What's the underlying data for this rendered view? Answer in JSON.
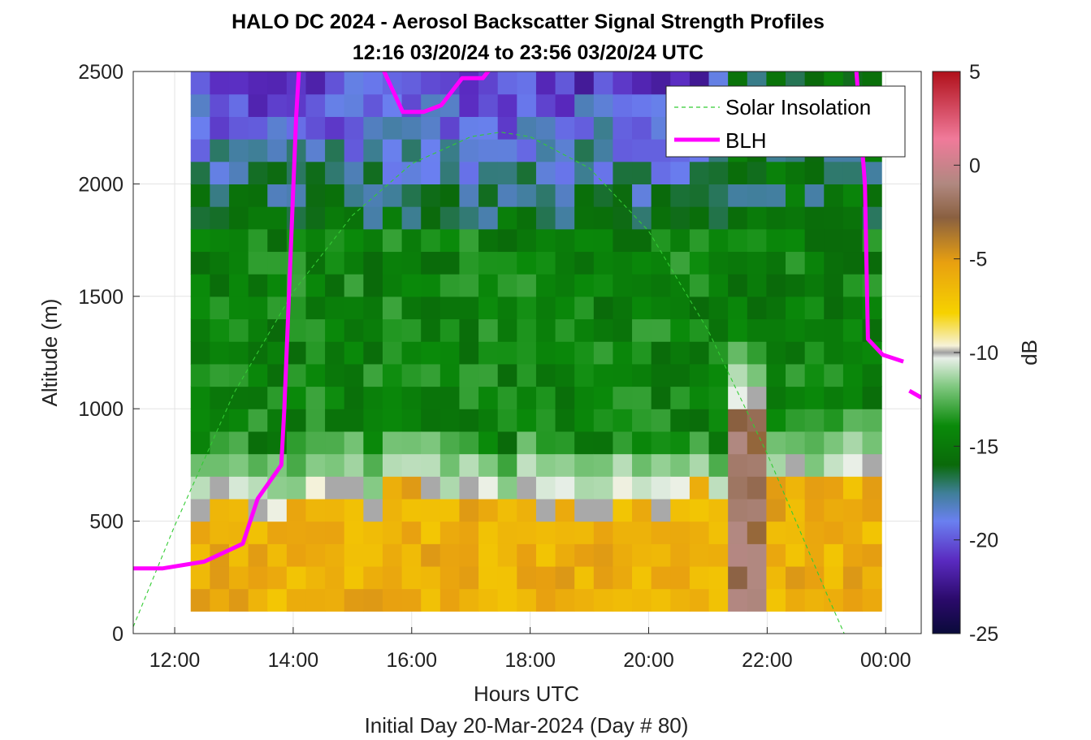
{
  "chart_data": {
    "type": "heatmap",
    "title": "HALO DC 2024 - Aerosol Backscatter Signal Strength Profiles",
    "subtitle": "12:16 03/20/24 to 23:56 03/20/24  UTC",
    "xlabel": "Hours UTC",
    "xlabel2": "Initial Day 20-Mar-2024 (Day # 80)",
    "ylabel": "Altitude (m)",
    "xlim": [
      11.3,
      24.6
    ],
    "ylim": [
      0,
      2500
    ],
    "x_ticks": [
      {
        "value": 12,
        "label": "12:00"
      },
      {
        "value": 14,
        "label": "14:00"
      },
      {
        "value": 16,
        "label": "16:00"
      },
      {
        "value": 18,
        "label": "18:00"
      },
      {
        "value": 20,
        "label": "20:00"
      },
      {
        "value": 22,
        "label": "22:00"
      },
      {
        "value": 24,
        "label": "00:00"
      }
    ],
    "y_ticks": [
      {
        "value": 0,
        "label": "0"
      },
      {
        "value": 500,
        "label": "500"
      },
      {
        "value": 1000,
        "label": "1000"
      },
      {
        "value": 1500,
        "label": "1500"
      },
      {
        "value": 2000,
        "label": "2000"
      },
      {
        "value": 2500,
        "label": "2500"
      }
    ],
    "grid": true,
    "legend_position": "top-right",
    "colorbar": {
      "label": "dB",
      "range": [
        -25,
        5
      ],
      "ticks": [
        {
          "value": 5,
          "label": "5"
        },
        {
          "value": 0,
          "label": "0"
        },
        {
          "value": -5,
          "label": "-5"
        },
        {
          "value": -10,
          "label": "-10"
        },
        {
          "value": -15,
          "label": "-15"
        },
        {
          "value": -20,
          "label": "-20"
        },
        {
          "value": -25,
          "label": "-25"
        }
      ]
    },
    "heatmap": {
      "x_start": 12.27,
      "x_end": 23.93,
      "columns": 36,
      "y_start": 100,
      "y_end": 2500,
      "rows": 24,
      "missing_value_color": "#a9a9a9",
      "description_regimes": [
        {
          "x_range": [
            12.27,
            21.3
          ],
          "surface_layer_db": -6,
          "top_of_layer_m": 600,
          "upper_db": -20
        },
        {
          "x_range": [
            21.3,
            22.0
          ],
          "surface_layer_db": -2,
          "top_of_layer_m": 1000,
          "upper_db": -16
        },
        {
          "x_range": [
            22.0,
            23.93
          ],
          "surface_layer_db": -6,
          "top_of_layer_m": 700,
          "upper_db": -16
        }
      ]
    },
    "series": [
      {
        "name": "Solar Insolation",
        "style": "dashed",
        "color": "#33cc33",
        "x": [
          11.3,
          12.0,
          13.0,
          14.0,
          15.0,
          16.0,
          17.0,
          17.5,
          18.0,
          19.0,
          20.0,
          21.0,
          22.0,
          23.0,
          23.3,
          23.5,
          24.0,
          24.6
        ],
        "y": [
          30,
          480,
          1070,
          1520,
          1860,
          2090,
          2210,
          2230,
          2210,
          2070,
          1790,
          1350,
          800,
          180,
          0,
          0,
          0,
          0
        ]
      },
      {
        "name": "BLH",
        "style": "solid",
        "color": "#ff00ff",
        "segments": [
          {
            "x": [
              11.3,
              11.8,
              12.5,
              13.15,
              13.4,
              13.8,
              13.85,
              14.05,
              14.1
            ],
            "y": [
              290,
              290,
              320,
              400,
              600,
              750,
              1000,
              2300,
              2520
            ]
          },
          {
            "x": [
              15.5,
              15.85,
              16.2,
              16.5,
              16.85,
              17.2,
              17.35
            ],
            "y": [
              2520,
              2320,
              2320,
              2350,
              2470,
              2470,
              2520
            ]
          },
          {
            "x": [
              23.5,
              23.65,
              23.7,
              23.95,
              24.3
            ],
            "y": [
              2520,
              2000,
              1310,
              1240,
              1210
            ]
          },
          {
            "x": [
              24.4,
              24.6
            ],
            "y": [
              1080,
              1050
            ]
          }
        ]
      }
    ]
  }
}
